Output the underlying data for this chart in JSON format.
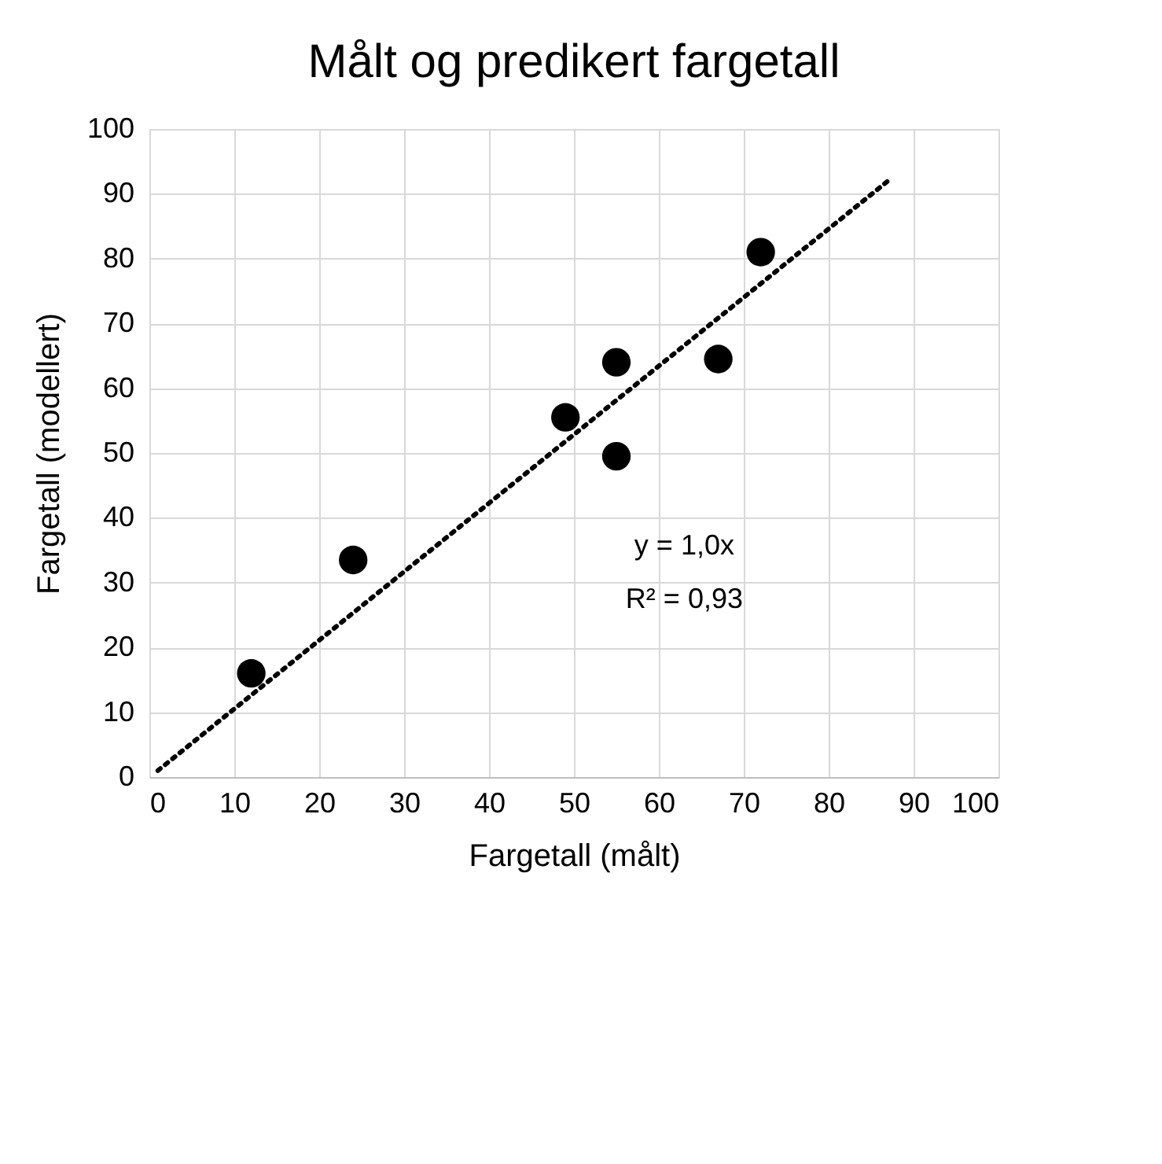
{
  "chart_data": {
    "type": "scatter",
    "title": "Målt og predikert fargetall",
    "xlabel": "Fargetall (målt)",
    "ylabel": "Fargetall (modellert)",
    "xlim": [
      0,
      100
    ],
    "ylim": [
      0,
      100
    ],
    "xticks": [
      0,
      10,
      20,
      30,
      40,
      50,
      60,
      70,
      80,
      90,
      100
    ],
    "yticks": [
      0,
      10,
      20,
      30,
      40,
      50,
      60,
      70,
      80,
      90,
      100
    ],
    "grid": true,
    "marker": "circle",
    "series": [
      {
        "color": "#000000",
        "x": [
          12,
          24,
          49,
          55,
          55,
          67,
          72
        ],
        "values": [
          16,
          33.5,
          55.5,
          64,
          49.5,
          64.5,
          81
        ]
      },
      {
        "type": "line",
        "color": "#000000",
        "line_style": "dotted",
        "marker": "none",
        "x": [
          1,
          87
        ],
        "values": [
          1,
          92
        ]
      }
    ],
    "annotations": [
      "y = 1,0x",
      "R² = 0,93"
    ]
  }
}
